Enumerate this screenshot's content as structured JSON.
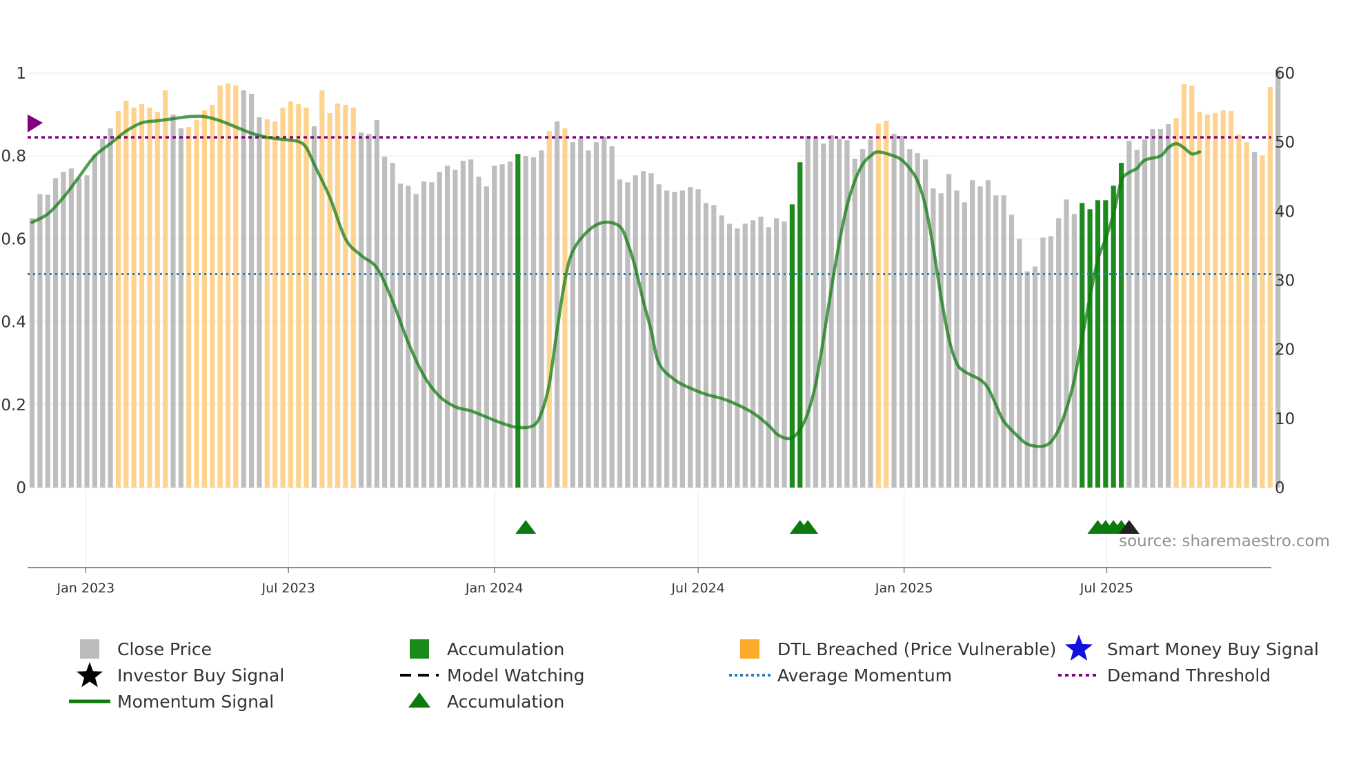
{
  "chart_data": {
    "type": "bar",
    "source": "source: sharemaestro.com",
    "x_ticks": [
      "Jan 2023",
      "Jul 2023",
      "Jan 2024",
      "Jul 2024",
      "Jan 2025",
      "Jul 2025"
    ],
    "y_left_ticks": [
      "0",
      "0.2",
      "0.4",
      "0.6",
      "0.8",
      "1"
    ],
    "y_right_ticks": [
      "0",
      "10",
      "20",
      "30",
      "40",
      "50",
      "60"
    ],
    "y_left_range": [
      0,
      1
    ],
    "y_right_range": [
      0,
      60
    ],
    "start_date": "2022-11-14",
    "bar_interval_days": 7,
    "close_prices": [
      39,
      42.5,
      42.4,
      44.8,
      45.7,
      46.2,
      44.8,
      45.2,
      48.2,
      50.5,
      52,
      54.5,
      56,
      55,
      55.5,
      55,
      54.4,
      57.5,
      54,
      52,
      52.2,
      53.2,
      54.6,
      55.4,
      58.2,
      58.5,
      58.2,
      57.5,
      57,
      53.6,
      53.3,
      53,
      55,
      55.9,
      55.5,
      55,
      52.3,
      57.5,
      54.2,
      55.6,
      55.4,
      55,
      51.4,
      51.2,
      53.2,
      47.9,
      47,
      44,
      43.7,
      42.5,
      44.3,
      44.2,
      45.7,
      46.6,
      46,
      47.3,
      47.5,
      45,
      43.6,
      46.6,
      46.8,
      47.2,
      48.3,
      48,
      47.8,
      48.8,
      51.6,
      53,
      52,
      50,
      50.5,
      48.8,
      50,
      50.8,
      49.4,
      44.6,
      44.2,
      45.2,
      45.8,
      45.5,
      43.9,
      43,
      42.8,
      43,
      43.5,
      43.2,
      41.2,
      40.9,
      39.4,
      38.2,
      37.5,
      38.2,
      38.7,
      39.2,
      37.7,
      39,
      38.5,
      41,
      47.1,
      50.9,
      50.8,
      49.8,
      51,
      50.5,
      50.3,
      47.6,
      49,
      50.4,
      52.7,
      53.1,
      51.2,
      50.9,
      49,
      48.4,
      47.5,
      43.3,
      42.6,
      45.4,
      43,
      41.3,
      44.5,
      43.6,
      44.5,
      42.3,
      42.3,
      39.5,
      36,
      31.3,
      32,
      36.2,
      36.4,
      39,
      41.7,
      39.6,
      41.2,
      40.3,
      41.6,
      41.6,
      43.7,
      47,
      50.2,
      48.9,
      50.4,
      51.9,
      51.9,
      52.6,
      53.5,
      58.4,
      58.2,
      54.4,
      54,
      54.2,
      54.6,
      54.5,
      51.1,
      50,
      48.6,
      48.1,
      58,
      60.5
    ],
    "accumulation_bars": [
      62,
      97,
      98,
      134,
      135,
      136,
      137,
      138,
      139
    ],
    "dtl_breached_bars": [
      11,
      12,
      13,
      14,
      15,
      16,
      17,
      20,
      21,
      22,
      23,
      24,
      25,
      26,
      30,
      31,
      32,
      33,
      34,
      35,
      37,
      38,
      39,
      40,
      41,
      66,
      68,
      108,
      109,
      146,
      147,
      148,
      149,
      150,
      151,
      152,
      153,
      154,
      155,
      157,
      158
    ],
    "momentum_signal": [
      [
        0,
        0.64
      ],
      [
        2,
        0.66
      ],
      [
        4,
        0.7
      ],
      [
        6,
        0.75
      ],
      [
        8,
        0.8
      ],
      [
        10,
        0.83
      ],
      [
        12,
        0.86
      ],
      [
        14,
        0.88
      ],
      [
        16,
        0.885
      ],
      [
        18,
        0.89
      ],
      [
        20,
        0.895
      ],
      [
        22,
        0.895
      ],
      [
        24,
        0.885
      ],
      [
        26,
        0.87
      ],
      [
        28,
        0.855
      ],
      [
        30,
        0.845
      ],
      [
        32,
        0.84
      ],
      [
        34,
        0.835
      ],
      [
        35,
        0.82
      ],
      [
        36,
        0.78
      ],
      [
        38,
        0.7
      ],
      [
        40,
        0.6
      ],
      [
        42,
        0.56
      ],
      [
        44,
        0.53
      ],
      [
        46,
        0.45
      ],
      [
        48,
        0.35
      ],
      [
        50,
        0.27
      ],
      [
        52,
        0.22
      ],
      [
        54,
        0.195
      ],
      [
        56,
        0.185
      ],
      [
        58,
        0.17
      ],
      [
        60,
        0.155
      ],
      [
        62,
        0.145
      ],
      [
        64,
        0.15
      ],
      [
        65,
        0.18
      ],
      [
        66,
        0.25
      ],
      [
        67,
        0.38
      ],
      [
        68,
        0.5
      ],
      [
        69,
        0.57
      ],
      [
        71,
        0.62
      ],
      [
        73,
        0.64
      ],
      [
        75,
        0.63
      ],
      [
        76,
        0.59
      ],
      [
        77,
        0.53
      ],
      [
        78,
        0.45
      ],
      [
        79,
        0.38
      ],
      [
        80,
        0.3
      ],
      [
        82,
        0.26
      ],
      [
        84,
        0.24
      ],
      [
        86,
        0.225
      ],
      [
        88,
        0.215
      ],
      [
        90,
        0.2
      ],
      [
        92,
        0.18
      ],
      [
        94,
        0.15
      ],
      [
        95,
        0.13
      ],
      [
        96,
        0.12
      ],
      [
        97,
        0.12
      ],
      [
        98,
        0.14
      ],
      [
        99,
        0.18
      ],
      [
        100,
        0.25
      ],
      [
        101,
        0.36
      ],
      [
        102,
        0.48
      ],
      [
        103,
        0.59
      ],
      [
        104,
        0.68
      ],
      [
        105,
        0.74
      ],
      [
        106,
        0.78
      ],
      [
        107,
        0.8
      ],
      [
        108,
        0.81
      ],
      [
        110,
        0.8
      ],
      [
        111,
        0.79
      ],
      [
        112,
        0.77
      ],
      [
        113,
        0.74
      ],
      [
        114,
        0.68
      ],
      [
        115,
        0.58
      ],
      [
        116,
        0.46
      ],
      [
        117,
        0.36
      ],
      [
        118,
        0.3
      ],
      [
        119,
        0.28
      ],
      [
        121,
        0.26
      ],
      [
        122,
        0.24
      ],
      [
        123,
        0.2
      ],
      [
        124,
        0.16
      ],
      [
        126,
        0.12
      ],
      [
        127,
        0.105
      ],
      [
        128,
        0.1
      ],
      [
        129,
        0.1
      ],
      [
        130,
        0.11
      ],
      [
        131,
        0.14
      ],
      [
        132,
        0.19
      ],
      [
        133,
        0.26
      ],
      [
        134,
        0.36
      ],
      [
        135,
        0.46
      ],
      [
        136,
        0.55
      ],
      [
        137,
        0.6
      ],
      [
        138,
        0.66
      ],
      [
        139,
        0.74
      ],
      [
        140,
        0.76
      ],
      [
        141,
        0.77
      ],
      [
        142,
        0.79
      ],
      [
        144,
        0.8
      ],
      [
        145,
        0.82
      ],
      [
        146,
        0.83
      ],
      [
        147,
        0.82
      ],
      [
        148,
        0.805
      ],
      [
        149,
        0.81
      ]
    ],
    "average_momentum": 0.515,
    "demand_threshold": 0.845,
    "accumulation_triangles": [
      63,
      98,
      99,
      136,
      137,
      138,
      139
    ],
    "investor_buy_signals": [
      140
    ],
    "legend": [
      {
        "label": "Close Price",
        "color": "#bbbbbb"
      },
      {
        "label": "Investor Buy Signal",
        "color": "#000000"
      },
      {
        "label": "Momentum Signal",
        "color": "#0d7a0d"
      },
      {
        "label": "Accumulation",
        "color": "#1a8a1a"
      },
      {
        "label": "Model Watching",
        "color": "#000000"
      },
      {
        "label": "Accumulation",
        "color": "#0d7a0d"
      },
      {
        "label": "DTL Breached (Price Vulnerable)",
        "color": "#fbab2b"
      },
      {
        "label": "Average Momentum",
        "color": "#2c7fb8"
      },
      {
        "label": "Smart Money Buy Signal",
        "color": "#1010e0"
      },
      {
        "label": "Demand Threshold",
        "color": "#800080"
      }
    ],
    "colors": {
      "close": "#bebebe",
      "accumulation": "#1c8a1c",
      "dtl": "#fdd38f",
      "momentum": "#0d7a0d",
      "avg_momentum": "#2c7fb8",
      "demand": "#800080"
    }
  }
}
